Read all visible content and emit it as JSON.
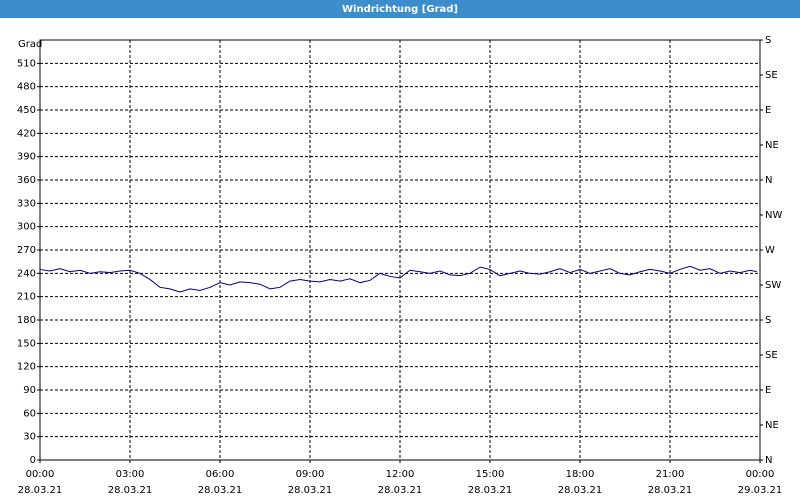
{
  "chart_data": {
    "type": "line",
    "title": "Windrichtung [Grad]",
    "y_label": "Grad",
    "color": "#00008b",
    "grid": true,
    "x": [
      0,
      0.33,
      0.67,
      1,
      1.33,
      1.67,
      2,
      2.33,
      2.67,
      3,
      3.33,
      3.67,
      4,
      4.33,
      4.67,
      5,
      5.33,
      5.67,
      6,
      6.33,
      6.67,
      7,
      7.33,
      7.67,
      8,
      8.33,
      8.67,
      9,
      9.33,
      9.67,
      10,
      10.33,
      10.67,
      11,
      11.33,
      11.67,
      12,
      12.33,
      12.67,
      13,
      13.33,
      13.67,
      14,
      14.33,
      14.67,
      15,
      15.33,
      15.67,
      16,
      16.33,
      16.67,
      17,
      17.33,
      17.67,
      18,
      18.33,
      18.67,
      19,
      19.33,
      19.67,
      20,
      20.33,
      20.67,
      21,
      21.33,
      21.67,
      22,
      22.33,
      22.67,
      23,
      23.33,
      23.67,
      23.9
    ],
    "values": [
      245,
      243,
      246,
      242,
      244,
      240,
      242,
      241,
      243,
      244,
      240,
      232,
      222,
      220,
      216,
      220,
      218,
      222,
      228,
      225,
      229,
      228,
      226,
      220,
      222,
      230,
      232,
      230,
      229,
      232,
      230,
      233,
      228,
      231,
      240,
      236,
      234,
      244,
      242,
      240,
      243,
      238,
      237,
      240,
      248,
      245,
      237,
      240,
      243,
      240,
      239,
      242,
      246,
      241,
      245,
      240,
      243,
      246,
      240,
      238,
      242,
      245,
      243,
      240,
      245,
      249,
      244,
      246,
      240,
      243,
      241,
      244,
      242
    ],
    "xlim": [
      0,
      24
    ],
    "xticks": [
      {
        "value": 0,
        "label": "00:00"
      },
      {
        "value": 3,
        "label": "03:00"
      },
      {
        "value": 6,
        "label": "06:00"
      },
      {
        "value": 9,
        "label": "09:00"
      },
      {
        "value": 12,
        "label": "12:00"
      },
      {
        "value": 15,
        "label": "15:00"
      },
      {
        "value": 18,
        "label": "18:00"
      },
      {
        "value": 21,
        "label": "21:00"
      },
      {
        "value": 24,
        "label": "00:00"
      }
    ],
    "xtick_dates": [
      "28.03.21",
      "28.03.21",
      "28.03.21",
      "28.03.21",
      "28.03.21",
      "28.03.21",
      "28.03.21",
      "28.03.21",
      "29.03.21"
    ],
    "ylim": [
      0,
      540
    ],
    "yticks": [
      0,
      30,
      60,
      90,
      120,
      150,
      180,
      210,
      240,
      270,
      300,
      330,
      360,
      390,
      420,
      450,
      480,
      510
    ],
    "y2lim": [
      0,
      540
    ],
    "y2ticks": [
      {
        "value": 0,
        "label": "N"
      },
      {
        "value": 45,
        "label": "NE"
      },
      {
        "value": 90,
        "label": "E"
      },
      {
        "value": 135,
        "label": "SE"
      },
      {
        "value": 180,
        "label": "S"
      },
      {
        "value": 225,
        "label": "SW"
      },
      {
        "value": 270,
        "label": "W"
      },
      {
        "value": 315,
        "label": "NW"
      },
      {
        "value": 360,
        "label": "N"
      },
      {
        "value": 405,
        "label": "NE"
      },
      {
        "value": 450,
        "label": "E"
      },
      {
        "value": 495,
        "label": "SE"
      },
      {
        "value": 540,
        "label": "S"
      }
    ]
  }
}
